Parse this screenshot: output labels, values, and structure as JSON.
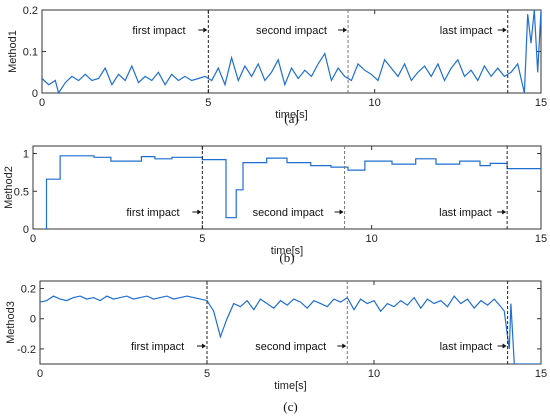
{
  "chart_data": [
    {
      "type": "line",
      "panel_caption": "(a)",
      "ylabel": "Method1",
      "xlabel": "time[s]",
      "xlim": [
        0,
        15
      ],
      "ylim": [
        0,
        0.2
      ],
      "xticks": [
        "0",
        "5",
        "10",
        "15"
      ],
      "yticks": [
        "0",
        "0.1",
        "0.2"
      ],
      "grid": false,
      "annotations": [
        {
          "text": "first impact",
          "x": 5.0
        },
        {
          "text": "second impact",
          "x": 9.2
        },
        {
          "text": "last impact",
          "x": 14.0
        }
      ],
      "series": [
        {
          "color": "#1f6fd0",
          "x": [
            0,
            0.2,
            0.4,
            0.5,
            0.7,
            0.9,
            1.1,
            1.3,
            1.5,
            1.7,
            1.9,
            2.1,
            2.3,
            2.5,
            2.7,
            2.9,
            3.1,
            3.3,
            3.5,
            3.7,
            3.9,
            4.1,
            4.3,
            4.5,
            4.7,
            4.9,
            5.1,
            5.3,
            5.5,
            5.7,
            5.9,
            6.1,
            6.3,
            6.5,
            6.7,
            6.9,
            7.1,
            7.3,
            7.5,
            7.7,
            7.9,
            8.1,
            8.3,
            8.5,
            8.7,
            8.9,
            9.1,
            9.3,
            9.5,
            9.7,
            9.9,
            10.1,
            10.3,
            10.5,
            10.7,
            10.9,
            11.1,
            11.3,
            11.5,
            11.7,
            11.9,
            12.1,
            12.3,
            12.5,
            12.7,
            12.9,
            13.1,
            13.3,
            13.5,
            13.7,
            13.9,
            14.1,
            14.3,
            14.5,
            14.6,
            14.7,
            14.8,
            14.9,
            15.0
          ],
          "y": [
            0.035,
            0.02,
            0.03,
            0.0,
            0.025,
            0.04,
            0.03,
            0.045,
            0.03,
            0.035,
            0.06,
            0.02,
            0.045,
            0.03,
            0.065,
            0.025,
            0.04,
            0.03,
            0.05,
            0.02,
            0.045,
            0.03,
            0.04,
            0.03,
            0.035,
            0.04,
            0.03,
            0.06,
            0.02,
            0.085,
            0.03,
            0.065,
            0.04,
            0.07,
            0.03,
            0.05,
            0.08,
            0.02,
            0.06,
            0.035,
            0.055,
            0.04,
            0.07,
            0.095,
            0.03,
            0.06,
            0.04,
            0.03,
            0.07,
            0.055,
            0.045,
            0.03,
            0.08,
            0.06,
            0.04,
            0.07,
            0.03,
            0.05,
            0.065,
            0.04,
            0.07,
            0.03,
            0.06,
            0.08,
            0.04,
            0.055,
            0.03,
            0.065,
            0.04,
            0.06,
            0.04,
            0.05,
            0.07,
            0.0,
            0.19,
            0.12,
            0.2,
            0.05,
            0.2
          ]
        }
      ]
    },
    {
      "type": "line",
      "panel_caption": "(b)",
      "ylabel": "Method2",
      "xlabel": "time[s]",
      "xlim": [
        0,
        15
      ],
      "ylim": [
        0,
        1.1
      ],
      "xticks": [
        "0",
        "5",
        "10",
        "15"
      ],
      "yticks": [
        "0",
        "0.5",
        "1"
      ],
      "grid": false,
      "annotations": [
        {
          "text": "first impact",
          "x": 5.0
        },
        {
          "text": "second impact",
          "x": 9.2
        },
        {
          "text": "last impact",
          "x": 14.0
        }
      ],
      "series": [
        {
          "color": "#1f6fd0",
          "x": [
            0.3,
            0.4,
            0.4,
            0.8,
            0.8,
            1.8,
            1.8,
            2.3,
            2.3,
            3.2,
            3.2,
            3.6,
            3.6,
            4.1,
            4.1,
            5.0,
            5.0,
            5.7,
            5.7,
            6.0,
            6.0,
            6.2,
            6.2,
            6.9,
            6.9,
            7.5,
            7.5,
            8.2,
            8.2,
            8.8,
            8.8,
            9.3,
            9.3,
            9.8,
            9.8,
            10.6,
            10.6,
            11.3,
            11.3,
            11.9,
            11.9,
            12.6,
            12.6,
            13.2,
            13.2,
            13.5,
            13.5,
            14.0,
            14.0,
            15.0
          ],
          "y": [
            0,
            0,
            0.66,
            0.66,
            0.97,
            0.97,
            0.95,
            0.95,
            0.9,
            0.9,
            0.96,
            0.96,
            0.93,
            0.93,
            0.95,
            0.95,
            0.92,
            0.92,
            0.15,
            0.15,
            0.52,
            0.52,
            0.88,
            0.88,
            0.94,
            0.94,
            0.88,
            0.88,
            0.84,
            0.84,
            0.82,
            0.82,
            0.78,
            0.78,
            0.9,
            0.9,
            0.86,
            0.86,
            0.93,
            0.93,
            0.86,
            0.86,
            0.9,
            0.9,
            0.84,
            0.84,
            0.87,
            0.87,
            0.8,
            0.8
          ]
        }
      ]
    },
    {
      "type": "line",
      "panel_caption": "(c)",
      "ylabel": "Method3",
      "xlabel": "time[s]",
      "xlim": [
        0,
        15
      ],
      "ylim": [
        -0.3,
        0.25
      ],
      "xticks": [
        "0",
        "5",
        "10",
        "15"
      ],
      "yticks": [
        "-0.2",
        "0",
        "0.2"
      ],
      "grid": false,
      "annotations": [
        {
          "text": "first impact",
          "x": 5.0
        },
        {
          "text": "second impact",
          "x": 9.2
        },
        {
          "text": "last impact",
          "x": 14.0
        }
      ],
      "series": [
        {
          "color": "#1f6fd0",
          "x": [
            0,
            0.2,
            0.4,
            0.6,
            0.8,
            1.0,
            1.2,
            1.4,
            1.6,
            1.8,
            2.0,
            2.2,
            2.4,
            2.6,
            2.8,
            3.0,
            3.2,
            3.4,
            3.6,
            3.8,
            4.0,
            4.2,
            4.4,
            4.6,
            4.8,
            5.0,
            5.2,
            5.4,
            5.6,
            5.8,
            6.0,
            6.2,
            6.4,
            6.6,
            6.8,
            7.0,
            7.2,
            7.4,
            7.6,
            7.8,
            8.0,
            8.2,
            8.4,
            8.6,
            8.8,
            9.0,
            9.2,
            9.4,
            9.6,
            9.8,
            10.0,
            10.2,
            10.4,
            10.6,
            10.8,
            11.0,
            11.2,
            11.4,
            11.6,
            11.8,
            12.0,
            12.2,
            12.4,
            12.6,
            12.8,
            13.0,
            13.2,
            13.4,
            13.6,
            13.8,
            13.9,
            14.0,
            14.05,
            14.1,
            14.15,
            14.2,
            15.0
          ],
          "y": [
            0.11,
            0.12,
            0.15,
            0.13,
            0.12,
            0.14,
            0.15,
            0.13,
            0.14,
            0.12,
            0.15,
            0.13,
            0.14,
            0.15,
            0.13,
            0.14,
            0.15,
            0.13,
            0.14,
            0.15,
            0.13,
            0.14,
            0.15,
            0.14,
            0.13,
            0.12,
            0.05,
            -0.12,
            0.0,
            0.1,
            0.08,
            0.12,
            0.06,
            0.13,
            0.1,
            0.07,
            0.12,
            0.09,
            0.13,
            0.11,
            0.07,
            0.12,
            0.1,
            0.08,
            0.13,
            0.11,
            0.14,
            0.06,
            0.13,
            0.1,
            0.12,
            0.05,
            0.1,
            0.08,
            0.12,
            0.09,
            0.14,
            0.07,
            0.13,
            0.1,
            0.12,
            0.08,
            0.15,
            0.1,
            0.13,
            0.07,
            0.12,
            0.09,
            0.13,
            0.08,
            0.05,
            -0.12,
            -0.2,
            0.1,
            -0.1,
            -0.3,
            -0.3
          ]
        }
      ]
    }
  ]
}
